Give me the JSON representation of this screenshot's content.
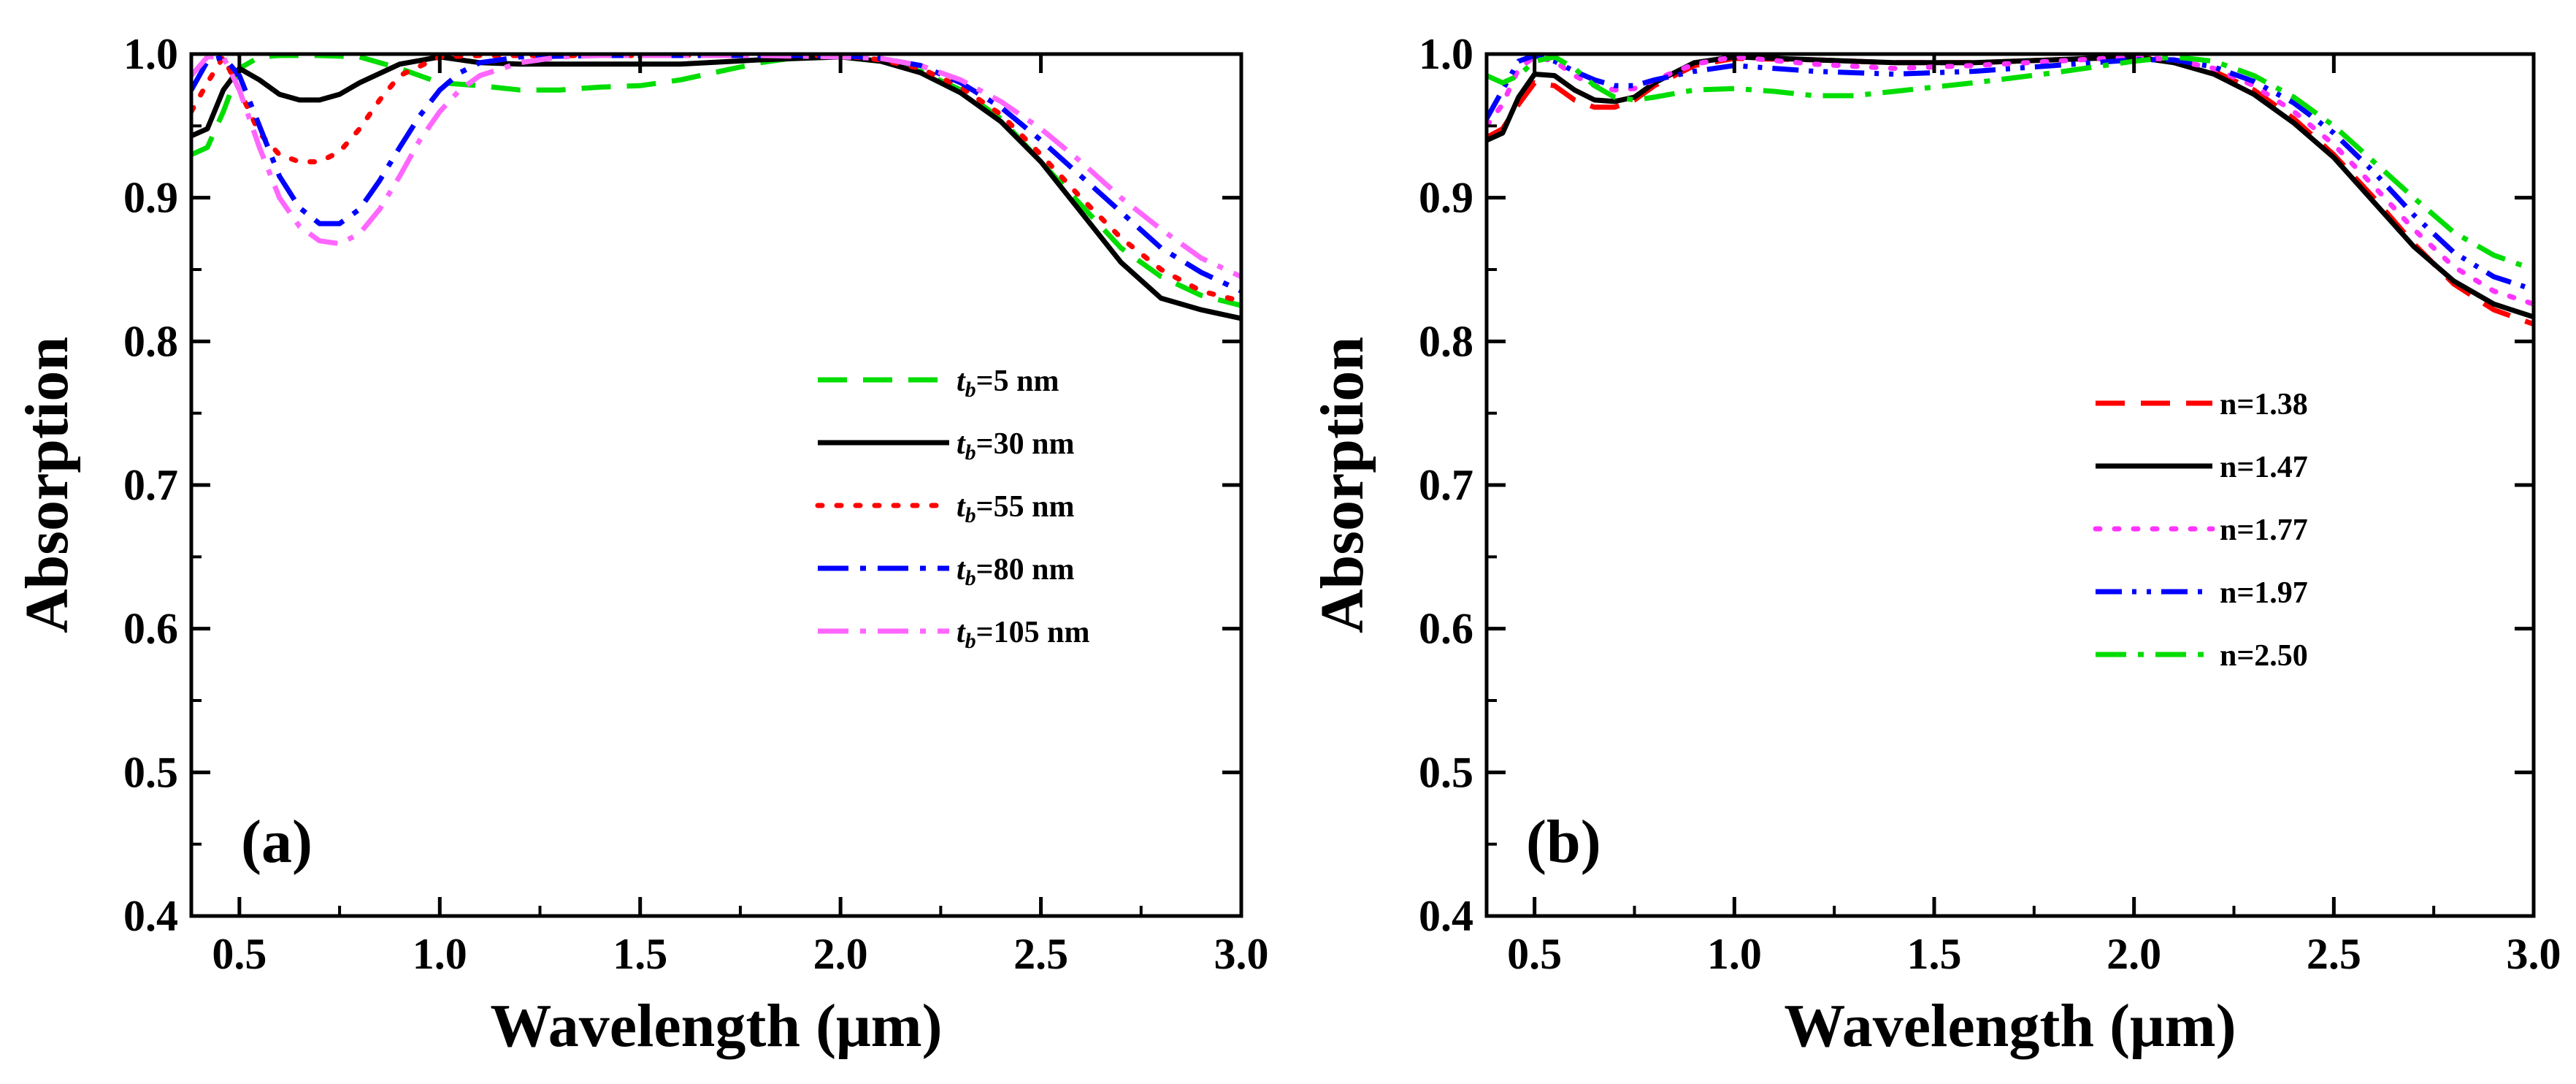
{
  "figure_title": "",
  "chart_data": [
    {
      "type": "line",
      "panel_label": "(a)",
      "xlabel": "Wavelength (μm)",
      "ylabel": "Absorption",
      "xlim": [
        0.38,
        3.0
      ],
      "ylim": [
        0.4,
        1.0
      ],
      "xticks": [
        0.5,
        1.0,
        1.5,
        2.0,
        2.5,
        3.0
      ],
      "xtick_labels": [
        "0.5",
        "1.0",
        "1.5",
        "2.0",
        "2.5",
        "3.0"
      ],
      "yticks": [
        0.4,
        0.5,
        0.6,
        0.7,
        0.8,
        0.9,
        1.0
      ],
      "ytick_labels": [
        "0.4",
        "0.5",
        "0.6",
        "0.7",
        "0.8",
        "0.9",
        "1.0"
      ],
      "legend_position": "center-right",
      "series": [
        {
          "name": "tb=5 nm",
          "legend_prefix": "t",
          "legend_sub": "b",
          "legend_suffix": "=5 nm",
          "color": "#00dd00",
          "dash": "dashed",
          "x": [
            0.38,
            0.42,
            0.46,
            0.5,
            0.55,
            0.6,
            0.7,
            0.8,
            0.9,
            1.0,
            1.1,
            1.2,
            1.3,
            1.4,
            1.5,
            1.6,
            1.7,
            1.8,
            1.9,
            2.0,
            2.1,
            2.2,
            2.3,
            2.4,
            2.5,
            2.6,
            2.7,
            2.8,
            2.9,
            3.0
          ],
          "y": [
            0.93,
            0.935,
            0.96,
            0.99,
            0.998,
            0.999,
            0.999,
            0.998,
            0.99,
            0.98,
            0.978,
            0.975,
            0.975,
            0.977,
            0.978,
            0.982,
            0.988,
            0.994,
            0.998,
            0.998,
            0.995,
            0.988,
            0.975,
            0.955,
            0.925,
            0.895,
            0.865,
            0.845,
            0.832,
            0.825
          ]
        },
        {
          "name": "tb=30 nm",
          "legend_prefix": "t",
          "legend_sub": "b",
          "legend_suffix": "=30 nm",
          "color": "#000000",
          "dash": "solid",
          "x": [
            0.38,
            0.42,
            0.46,
            0.5,
            0.55,
            0.6,
            0.65,
            0.7,
            0.75,
            0.8,
            0.9,
            1.0,
            1.1,
            1.2,
            1.4,
            1.6,
            1.8,
            2.0,
            2.1,
            2.2,
            2.3,
            2.4,
            2.5,
            2.6,
            2.7,
            2.8,
            2.9,
            3.0
          ],
          "y": [
            0.943,
            0.948,
            0.975,
            0.99,
            0.982,
            0.972,
            0.968,
            0.968,
            0.972,
            0.98,
            0.993,
            0.998,
            0.994,
            0.993,
            0.993,
            0.993,
            0.996,
            0.998,
            0.995,
            0.987,
            0.973,
            0.953,
            0.925,
            0.89,
            0.855,
            0.83,
            0.822,
            0.816
          ]
        },
        {
          "name": "tb=55 nm",
          "legend_prefix": "t",
          "legend_sub": "b",
          "legend_suffix": "=55 nm",
          "color": "#ff0000",
          "dash": "dotted",
          "x": [
            0.38,
            0.42,
            0.46,
            0.5,
            0.55,
            0.6,
            0.65,
            0.7,
            0.75,
            0.8,
            0.85,
            0.9,
            1.0,
            1.1,
            1.2,
            1.4,
            1.6,
            1.8,
            2.0,
            2.1,
            2.2,
            2.3,
            2.4,
            2.5,
            2.6,
            2.7,
            2.8,
            2.9,
            3.0
          ],
          "y": [
            0.96,
            0.98,
            0.998,
            0.975,
            0.945,
            0.93,
            0.925,
            0.925,
            0.932,
            0.948,
            0.968,
            0.985,
            0.998,
            0.999,
            0.999,
            0.999,
            0.999,
            0.999,
            0.999,
            0.996,
            0.99,
            0.977,
            0.958,
            0.93,
            0.9,
            0.872,
            0.85,
            0.835,
            0.828
          ]
        },
        {
          "name": "tb=80 nm",
          "legend_prefix": "t",
          "legend_sub": "b",
          "legend_suffix": "=80 nm",
          "color": "#0000ff",
          "dash": "dashdot",
          "x": [
            0.38,
            0.42,
            0.46,
            0.5,
            0.55,
            0.6,
            0.65,
            0.7,
            0.75,
            0.8,
            0.85,
            0.9,
            0.95,
            1.0,
            1.05,
            1.1,
            1.2,
            1.4,
            1.6,
            1.8,
            2.0,
            2.1,
            2.2,
            2.3,
            2.4,
            2.5,
            2.6,
            2.7,
            2.8,
            2.9,
            3.0
          ],
          "y": [
            0.975,
            0.995,
            0.998,
            0.985,
            0.95,
            0.915,
            0.893,
            0.882,
            0.882,
            0.892,
            0.912,
            0.935,
            0.957,
            0.975,
            0.987,
            0.994,
            0.998,
            0.999,
            0.999,
            0.999,
            0.999,
            0.997,
            0.992,
            0.98,
            0.963,
            0.94,
            0.915,
            0.89,
            0.865,
            0.848,
            0.835
          ]
        },
        {
          "name": "tb=105 nm",
          "legend_prefix": "t",
          "legend_sub": "b",
          "legend_suffix": "=105 nm",
          "color": "#ff66ff",
          "dash": "dashdot",
          "x": [
            0.38,
            0.42,
            0.46,
            0.5,
            0.55,
            0.6,
            0.65,
            0.7,
            0.75,
            0.8,
            0.85,
            0.9,
            0.95,
            1.0,
            1.05,
            1.1,
            1.2,
            1.3,
            1.4,
            1.6,
            1.8,
            2.0,
            2.1,
            2.2,
            2.3,
            2.4,
            2.5,
            2.6,
            2.7,
            2.8,
            2.9,
            3.0
          ],
          "y": [
            0.985,
            0.998,
            0.998,
            0.975,
            0.935,
            0.9,
            0.88,
            0.87,
            0.868,
            0.875,
            0.892,
            0.915,
            0.94,
            0.96,
            0.975,
            0.985,
            0.994,
            0.998,
            0.999,
            0.999,
            0.999,
            0.998,
            0.997,
            0.992,
            0.982,
            0.967,
            0.948,
            0.925,
            0.9,
            0.878,
            0.858,
            0.845
          ]
        }
      ]
    },
    {
      "type": "line",
      "panel_label": "(b)",
      "xlabel": "Wavelength (μm)",
      "ylabel": "Absorption",
      "xlim": [
        0.38,
        3.0
      ],
      "ylim": [
        0.4,
        1.0
      ],
      "xticks": [
        0.5,
        1.0,
        1.5,
        2.0,
        2.5,
        3.0
      ],
      "xtick_labels": [
        "0.5",
        "1.0",
        "1.5",
        "2.0",
        "2.5",
        "3.0"
      ],
      "yticks": [
        0.4,
        0.5,
        0.6,
        0.7,
        0.8,
        0.9,
        1.0
      ],
      "ytick_labels": [
        "0.4",
        "0.5",
        "0.6",
        "0.7",
        "0.8",
        "0.9",
        "1.0"
      ],
      "legend_position": "center-right",
      "series": [
        {
          "name": "n=1.38",
          "legend_prefix": "",
          "legend_sub": "",
          "legend_suffix": "n=1.38",
          "color": "#ff0000",
          "dash": "dashed",
          "x": [
            0.38,
            0.42,
            0.46,
            0.5,
            0.55,
            0.6,
            0.65,
            0.7,
            0.75,
            0.8,
            0.9,
            1.0,
            1.2,
            1.4,
            1.6,
            1.8,
            2.0,
            2.1,
            2.2,
            2.3,
            2.4,
            2.5,
            2.6,
            2.7,
            2.8,
            2.9,
            3.0
          ],
          "y": [
            0.942,
            0.948,
            0.965,
            0.98,
            0.978,
            0.968,
            0.963,
            0.963,
            0.968,
            0.978,
            0.992,
            0.997,
            0.996,
            0.994,
            0.994,
            0.996,
            0.998,
            0.995,
            0.988,
            0.975,
            0.955,
            0.93,
            0.9,
            0.868,
            0.84,
            0.822,
            0.812
          ]
        },
        {
          "name": "n=1.47",
          "legend_prefix": "",
          "legend_sub": "",
          "legend_suffix": "n=1.47",
          "color": "#000000",
          "dash": "solid",
          "x": [
            0.38,
            0.42,
            0.46,
            0.5,
            0.55,
            0.6,
            0.65,
            0.7,
            0.75,
            0.8,
            0.9,
            1.0,
            1.2,
            1.4,
            1.6,
            1.8,
            2.0,
            2.1,
            2.2,
            2.3,
            2.4,
            2.5,
            2.6,
            2.7,
            2.8,
            2.9,
            3.0
          ],
          "y": [
            0.94,
            0.945,
            0.97,
            0.986,
            0.985,
            0.975,
            0.968,
            0.967,
            0.97,
            0.98,
            0.994,
            0.998,
            0.996,
            0.994,
            0.994,
            0.996,
            0.998,
            0.994,
            0.986,
            0.972,
            0.952,
            0.928,
            0.897,
            0.866,
            0.842,
            0.826,
            0.817
          ]
        },
        {
          "name": "n=1.77",
          "legend_prefix": "",
          "legend_sub": "",
          "legend_suffix": "n=1.77",
          "color": "#ff33ff",
          "dash": "dotted",
          "x": [
            0.38,
            0.42,
            0.46,
            0.5,
            0.55,
            0.6,
            0.65,
            0.7,
            0.75,
            0.8,
            0.9,
            1.0,
            1.2,
            1.4,
            1.6,
            1.8,
            2.0,
            2.1,
            2.2,
            2.3,
            2.4,
            2.5,
            2.6,
            2.7,
            2.8,
            2.9,
            3.0
          ],
          "y": [
            0.95,
            0.965,
            0.99,
            0.998,
            0.995,
            0.985,
            0.978,
            0.975,
            0.976,
            0.982,
            0.993,
            0.998,
            0.993,
            0.99,
            0.992,
            0.995,
            0.998,
            0.996,
            0.99,
            0.978,
            0.96,
            0.937,
            0.908,
            0.878,
            0.852,
            0.835,
            0.826
          ]
        },
        {
          "name": "n=1.97",
          "legend_prefix": "",
          "legend_sub": "",
          "legend_suffix": "n=1.97",
          "color": "#0000ff",
          "dash": "dashdotdot",
          "x": [
            0.38,
            0.42,
            0.46,
            0.5,
            0.55,
            0.6,
            0.65,
            0.7,
            0.75,
            0.8,
            0.9,
            1.0,
            1.2,
            1.4,
            1.6,
            1.8,
            2.0,
            2.1,
            2.2,
            2.3,
            2.4,
            2.5,
            2.6,
            2.7,
            2.8,
            2.9,
            3.0
          ],
          "y": [
            0.955,
            0.975,
            0.995,
            0.999,
            0.995,
            0.988,
            0.982,
            0.978,
            0.978,
            0.982,
            0.988,
            0.992,
            0.988,
            0.986,
            0.988,
            0.992,
            0.996,
            0.996,
            0.991,
            0.981,
            0.966,
            0.945,
            0.918,
            0.888,
            0.862,
            0.845,
            0.836
          ]
        },
        {
          "name": "n=2.50",
          "legend_prefix": "",
          "legend_sub": "",
          "legend_suffix": "n=2.50",
          "color": "#00dd00",
          "dash": "dashdot",
          "x": [
            0.38,
            0.42,
            0.46,
            0.5,
            0.55,
            0.6,
            0.65,
            0.7,
            0.75,
            0.8,
            0.9,
            1.0,
            1.1,
            1.2,
            1.3,
            1.4,
            1.6,
            1.8,
            2.0,
            2.1,
            2.2,
            2.3,
            2.4,
            2.5,
            2.6,
            2.7,
            2.8,
            2.9,
            3.0
          ],
          "y": [
            0.985,
            0.98,
            0.985,
            0.995,
            0.998,
            0.99,
            0.978,
            0.97,
            0.968,
            0.97,
            0.975,
            0.976,
            0.974,
            0.971,
            0.971,
            0.974,
            0.98,
            0.987,
            0.995,
            0.998,
            0.995,
            0.985,
            0.97,
            0.95,
            0.925,
            0.9,
            0.876,
            0.86,
            0.85
          ]
        }
      ]
    }
  ]
}
